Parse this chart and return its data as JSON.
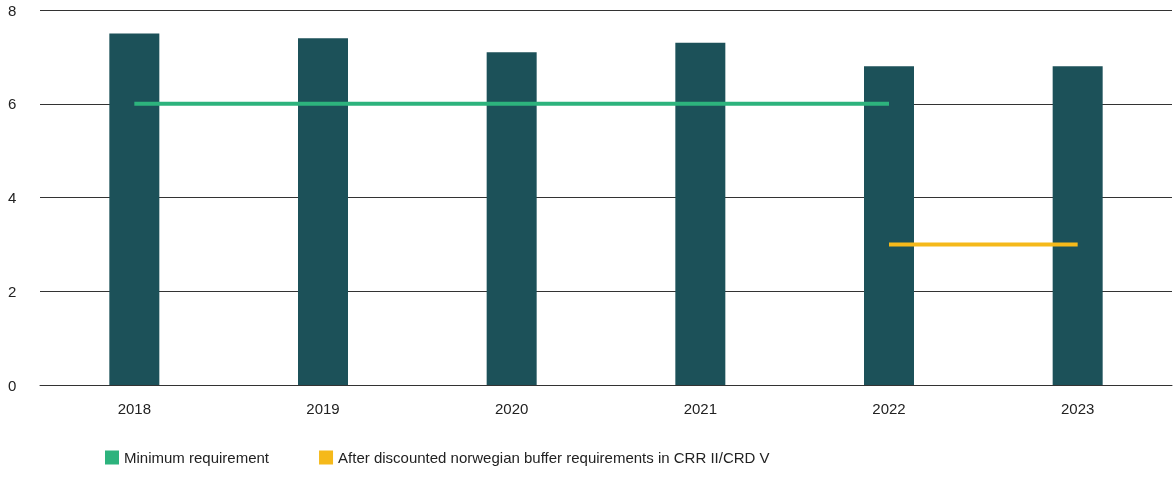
{
  "chart_data": {
    "type": "bar",
    "categories": [
      "2018",
      "2019",
      "2020",
      "2021",
      "2022",
      "2023"
    ],
    "series": [
      {
        "color": "#1c5159",
        "values": [
          7.5,
          7.4,
          7.1,
          7.3,
          6.8,
          6.8
        ]
      },
      {
        "type": "line",
        "name": "Minimum requirement",
        "color": "#2db37d",
        "values": [
          6,
          6,
          6,
          6,
          6,
          null
        ]
      },
      {
        "type": "line",
        "name": "After discounted norwegian buffer requirements in CRR II/CRD V",
        "color": "#f5b91a",
        "values": [
          null,
          null,
          null,
          null,
          3,
          3
        ]
      }
    ],
    "ylim": [
      0,
      8
    ],
    "yticks": [
      0,
      2,
      4,
      6,
      8
    ],
    "grid": "y",
    "legend": "bottom left",
    "marker": "none",
    "line_style": "solid"
  }
}
